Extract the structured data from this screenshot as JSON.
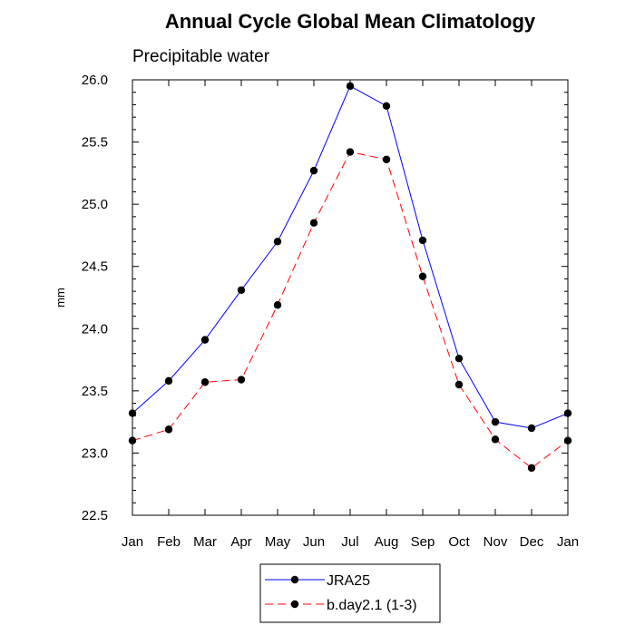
{
  "chart_data": {
    "type": "line",
    "title": "Annual Cycle Global Mean Climatology",
    "subtitle": "Precipitable water",
    "ylabel": "mm",
    "xlabel": "",
    "categories": [
      "Jan",
      "Feb",
      "Mar",
      "Apr",
      "May",
      "Jun",
      "Jul",
      "Aug",
      "Sep",
      "Oct",
      "Nov",
      "Dec",
      "Jan"
    ],
    "ylim": [
      22.5,
      26.0
    ],
    "yticks": [
      "22.5",
      "23.0",
      "23.5",
      "24.0",
      "24.5",
      "25.0",
      "25.5",
      "26.0"
    ],
    "grid": false,
    "legend_position": "bottom",
    "series": [
      {
        "name": "JRA25",
        "color": "#0000ff",
        "line_style": "solid",
        "marker": "circle",
        "values": [
          23.32,
          23.58,
          23.91,
          24.31,
          24.7,
          25.27,
          25.95,
          25.79,
          24.71,
          23.76,
          23.25,
          23.2,
          23.32
        ]
      },
      {
        "name": "b.day2.1 (1-3)",
        "color": "#ff0000",
        "line_style": "dashed",
        "marker": "circle",
        "values": [
          23.1,
          23.19,
          23.57,
          23.59,
          24.19,
          24.85,
          25.42,
          25.36,
          24.42,
          23.55,
          23.11,
          22.88,
          23.1
        ]
      }
    ]
  }
}
